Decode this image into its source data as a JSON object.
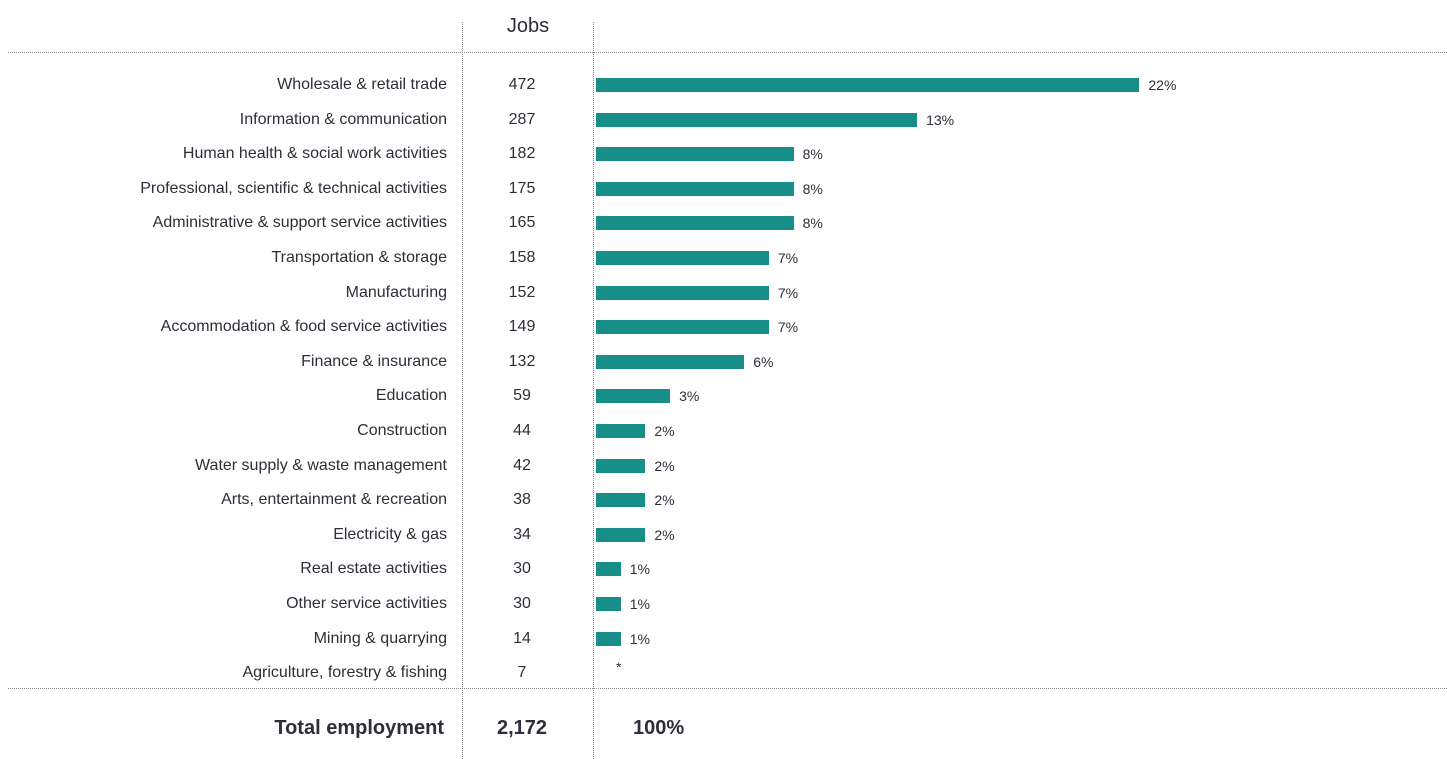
{
  "chart_data": {
    "type": "bar",
    "orientation": "horizontal",
    "column_header": "Jobs",
    "categories": [
      "Wholesale & retail trade",
      "Information & communication",
      "Human health & social work activities",
      "Professional, scientific & technical activities",
      "Administrative & support service activities",
      "Transportation & storage",
      "Manufacturing",
      "Accommodation & food service activities",
      "Finance & insurance",
      "Education",
      "Construction",
      "Water supply & waste management",
      "Arts, entertainment & recreation",
      "Electricity & gas",
      "Real estate activities",
      "Other service activities",
      "Mining & quarrying",
      "Agriculture, forestry & fishing"
    ],
    "jobs": [
      472,
      287,
      182,
      175,
      165,
      158,
      152,
      149,
      132,
      59,
      44,
      42,
      38,
      34,
      30,
      30,
      14,
      7
    ],
    "values": [
      22,
      13,
      8,
      8,
      8,
      7,
      7,
      7,
      6,
      3,
      2,
      2,
      2,
      2,
      1,
      1,
      1,
      0
    ],
    "value_labels": [
      "22%",
      "13%",
      "8%",
      "8%",
      "8%",
      "7%",
      "7%",
      "7%",
      "6%",
      "3%",
      "2%",
      "2%",
      "2%",
      "2%",
      "1%",
      "1%",
      "1%",
      "*"
    ],
    "total": {
      "label": "Total employment",
      "jobs": "2,172",
      "percent": "100%"
    },
    "bar_color": "#188e89",
    "text_color": "#2e2e38",
    "grid": false,
    "legend": "none"
  }
}
